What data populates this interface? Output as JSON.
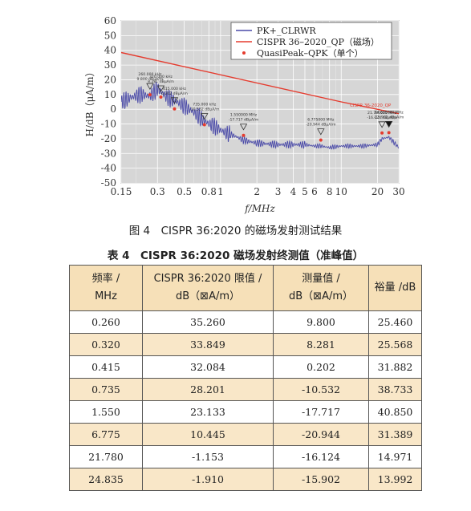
{
  "chart_data": {
    "type": "line",
    "xscale": "log",
    "xlim": [
      0.15,
      30
    ],
    "ylim": [
      -50,
      60
    ],
    "xlabel": "f/MHz",
    "ylabel": "H/dB（μA/m）",
    "xticks": [
      "0.15",
      "0.3",
      "0.5",
      "0.8",
      "1",
      "2",
      "3",
      "4",
      "5",
      "6",
      "8",
      "10",
      "20",
      "30"
    ],
    "yticks": [
      "60",
      "50",
      "40",
      "30",
      "20",
      "10",
      "0",
      "-10",
      "-20",
      "-30",
      "-40",
      "-50"
    ],
    "legend_position": "top-right",
    "grid": true,
    "series": [
      {
        "name": "PK+_CLRWR",
        "color": "#4a4aa8",
        "x": [
          0.15,
          0.18,
          0.22,
          0.26,
          0.3,
          0.32,
          0.36,
          0.415,
          0.5,
          0.6,
          0.735,
          0.9,
          1.1,
          1.3,
          1.55,
          2,
          3,
          4,
          5,
          6,
          6.775,
          8,
          10,
          15,
          20,
          21.78,
          24.835,
          30
        ],
        "y": [
          5,
          8,
          10,
          9,
          14,
          12,
          8,
          6,
          2,
          -2,
          -8,
          -12,
          -16,
          -18,
          -21,
          -23,
          -24,
          -24,
          -24,
          -25,
          -25,
          -26,
          -25,
          -25,
          -24,
          -20,
          -19,
          -26
        ]
      },
      {
        "name": "CISPR 36–2020_QP（磁场）",
        "color": "#e53b2e",
        "x": [
          0.15,
          10,
          30
        ],
        "y": [
          38.5,
          5,
          -3
        ]
      },
      {
        "name": "QuasiPeak–QPK（单个）",
        "color": "#e53b2e",
        "x": [
          0.26,
          0.32,
          0.415,
          0.735,
          1.55,
          6.775,
          21.78,
          24.835
        ],
        "y": [
          9.8,
          8.281,
          0.202,
          -10.532,
          -17.717,
          -20.944,
          -16.124,
          -15.902
        ]
      }
    ],
    "annotations": [
      {
        "x": 0.26,
        "lines": [
          "260.000 kHz",
          "9.800 dBμA/m"
        ]
      },
      {
        "x": 0.32,
        "lines": [
          "320.000 kHz",
          "8.281 dBμA/m"
        ]
      },
      {
        "x": 0.415,
        "lines": [
          "415.000 kHz",
          "0.202 dBμA/m"
        ]
      },
      {
        "x": 0.735,
        "lines": [
          "735.000 kHz",
          "-10.532 dBμA/m"
        ]
      },
      {
        "x": 1.55,
        "lines": [
          "1.550000 MHz",
          "-17.717 dBμA/m"
        ]
      },
      {
        "x": 6.775,
        "lines": [
          "6.775000 MHz",
          "-20.944 dBμA/m"
        ]
      },
      {
        "x": 21.78,
        "lines": [
          "21.780000 MHz",
          "-16.124 dBμA/m"
        ]
      },
      {
        "x": 24.835,
        "lines": [
          "24.835000 MHz",
          "-15.902 dBμA/m"
        ]
      }
    ],
    "limit_label": "CISPR 36-2020_QP"
  },
  "figure_caption": "图 4　CISPR 36:2020 的磁场发射测试结果",
  "table": {
    "caption": "表 4　CISPR 36:2020 磁场发射终测值（准峰值）",
    "headers": [
      [
        "频率 /",
        "MHz"
      ],
      [
        "CISPR 36:2020 限值 /",
        "dB（⊠A/m）"
      ],
      [
        "测量值 /",
        "dB（⊠A/m）"
      ],
      [
        "裕量 /dB",
        ""
      ]
    ],
    "rows": [
      [
        "0.260",
        "35.260",
        "9.800",
        "25.460"
      ],
      [
        "0.320",
        "33.849",
        "8.281",
        "25.568"
      ],
      [
        "0.415",
        "32.084",
        "0.202",
        "31.882"
      ],
      [
        "0.735",
        "28.201",
        "-10.532",
        "38.733"
      ],
      [
        "1.550",
        "23.133",
        "-17.717",
        "40.850"
      ],
      [
        "6.775",
        "10.445",
        "-20.944",
        "31.389"
      ],
      [
        "21.780",
        "-1.153",
        "-16.124",
        "14.971"
      ],
      [
        "24.835",
        "-1.910",
        "-15.902",
        "13.992"
      ]
    ]
  }
}
